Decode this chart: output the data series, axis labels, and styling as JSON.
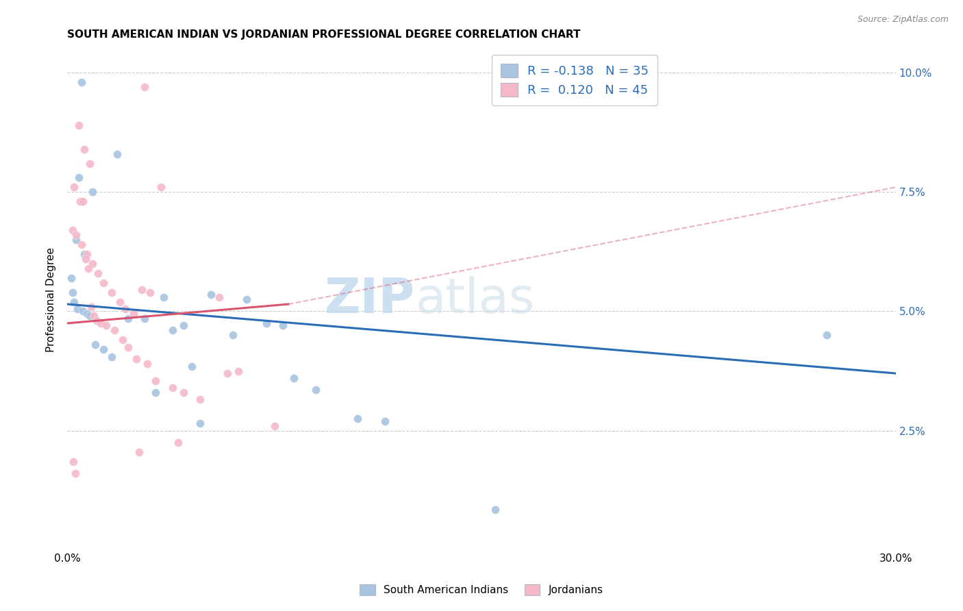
{
  "title": "SOUTH AMERICAN INDIAN VS JORDANIAN PROFESSIONAL DEGREE CORRELATION CHART",
  "source": "Source: ZipAtlas.com",
  "ylabel": "Professional Degree",
  "yticks": [
    "2.5%",
    "5.0%",
    "7.5%",
    "10.0%"
  ],
  "ytick_vals": [
    2.5,
    5.0,
    7.5,
    10.0
  ],
  "xmin": 0.0,
  "xmax": 30.0,
  "ymin": 0.0,
  "ymax": 10.5,
  "r_blue": -0.138,
  "n_blue": 35,
  "r_pink": 0.12,
  "n_pink": 45,
  "blue_color": "#a8c4e0",
  "pink_color": "#f4b8c8",
  "blue_line_color": "#2b6cb8",
  "pink_line_color": "#d9546e",
  "legend_blue_label": "South American Indians",
  "legend_pink_label": "Jordanians",
  "blue_scatter_x": [
    0.5,
    1.8,
    0.4,
    0.9,
    0.3,
    0.6,
    0.15,
    0.2,
    0.25,
    0.35,
    0.55,
    0.7,
    0.8,
    2.2,
    3.5,
    4.2,
    4.5,
    5.2,
    6.5,
    7.2,
    7.8,
    8.2,
    9.0,
    10.5,
    11.5,
    27.5,
    1.0,
    1.3,
    1.6,
    2.8,
    3.8,
    6.0,
    4.8,
    3.2,
    15.5
  ],
  "blue_scatter_y": [
    9.8,
    8.3,
    7.8,
    7.5,
    6.5,
    6.2,
    5.7,
    5.4,
    5.2,
    5.05,
    5.0,
    4.95,
    4.9,
    4.85,
    5.3,
    4.7,
    3.85,
    5.35,
    5.25,
    4.75,
    4.7,
    3.6,
    3.35,
    2.75,
    2.7,
    4.5,
    4.3,
    4.2,
    4.05,
    4.85,
    4.6,
    4.5,
    2.65,
    3.3,
    0.85
  ],
  "pink_scatter_x": [
    2.8,
    0.4,
    0.6,
    0.8,
    0.25,
    0.45,
    0.2,
    0.3,
    0.5,
    0.7,
    0.9,
    1.1,
    1.3,
    1.6,
    1.9,
    2.1,
    2.4,
    2.7,
    3.0,
    3.4,
    0.55,
    0.65,
    0.75,
    0.85,
    0.95,
    1.05,
    1.2,
    1.4,
    1.7,
    2.0,
    2.2,
    2.5,
    2.9,
    3.8,
    4.2,
    4.8,
    5.5,
    6.2,
    7.5,
    4.0,
    2.6,
    0.22,
    0.28,
    3.2,
    5.8
  ],
  "pink_scatter_y": [
    9.7,
    8.9,
    8.4,
    8.1,
    7.6,
    7.3,
    6.7,
    6.6,
    6.4,
    6.2,
    6.0,
    5.8,
    5.6,
    5.4,
    5.2,
    5.05,
    4.95,
    5.45,
    5.4,
    7.6,
    7.3,
    6.1,
    5.9,
    5.1,
    4.9,
    4.8,
    4.75,
    4.7,
    4.6,
    4.4,
    4.25,
    4.0,
    3.9,
    3.4,
    3.3,
    3.15,
    5.3,
    3.75,
    2.6,
    2.25,
    2.05,
    1.85,
    1.6,
    3.55,
    3.7
  ],
  "watermark_top": "ZIP",
  "watermark_bottom": "atlas",
  "marker_size": 75
}
